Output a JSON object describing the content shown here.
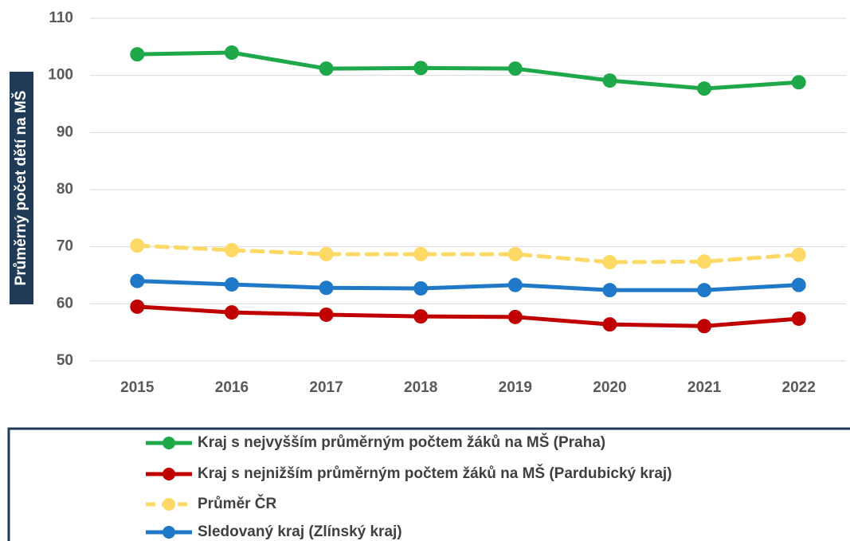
{
  "chart_data": {
    "type": "line",
    "y_axis_label": "Průměrný počet dětí na MŠ",
    "categories": [
      "2015",
      "2016",
      "2017",
      "2018",
      "2019",
      "2020",
      "2021",
      "2022"
    ],
    "series": [
      {
        "name": "Kraj s nejvyšším průměrným počtem žáků na MŠ (Praha)",
        "color": "#1ea84a",
        "dashed": false,
        "values": [
          103.7,
          104.0,
          101.2,
          101.3,
          101.2,
          99.1,
          97.7,
          98.8
        ]
      },
      {
        "name": "Kraj s nejnižším průměrným počtem žáků na MŠ (Pardubický kraj)",
        "color": "#c00000",
        "dashed": false,
        "values": [
          59.5,
          58.5,
          58.1,
          57.8,
          57.7,
          56.4,
          56.1,
          57.4
        ]
      },
      {
        "name": "Průměr ČR",
        "color": "#ffd966",
        "dashed": true,
        "values": [
          70.2,
          69.4,
          68.7,
          68.7,
          68.7,
          67.3,
          67.4,
          68.6
        ]
      },
      {
        "name": "Sledovaný kraj (Zlínský kraj)",
        "color": "#1f78c8",
        "dashed": false,
        "values": [
          64.0,
          63.4,
          62.8,
          62.7,
          63.3,
          62.4,
          62.4,
          63.3
        ]
      }
    ],
    "ylim": [
      50,
      110
    ],
    "yticks": [
      50,
      60,
      70,
      80,
      90,
      100,
      110
    ],
    "grid": true,
    "legend": "bottom"
  }
}
